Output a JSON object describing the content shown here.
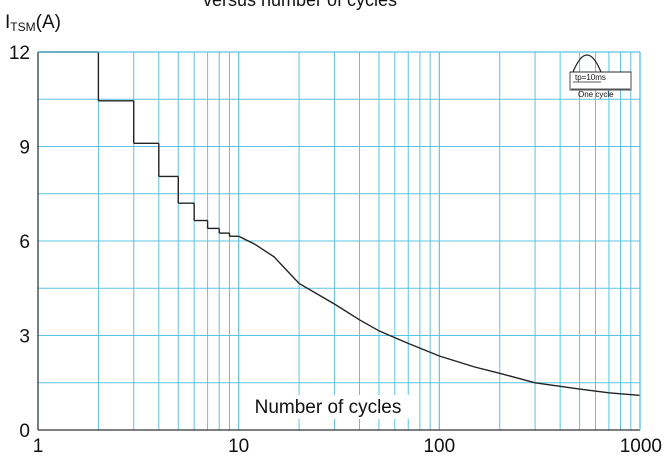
{
  "chart_data": {
    "type": "line",
    "title": "versus number of cycles",
    "ylabel_main": "I",
    "ylabel_sub": "TSM",
    "ylabel_unit": "(A)",
    "xlabel": "Number of cycles",
    "xscale": "log",
    "xlim": [
      1,
      1000
    ],
    "ylim": [
      0,
      12
    ],
    "x_ticks": [
      1,
      10,
      100,
      1000
    ],
    "x_tick_labels": [
      "1",
      "10",
      "100",
      "1000"
    ],
    "y_ticks": [
      0,
      3,
      6,
      9,
      12
    ],
    "y_tick_labels": [
      "0",
      "3",
      "6",
      "9",
      "12"
    ],
    "grid": true,
    "colors": {
      "grid": "#5bc4e3",
      "curve": "#222222",
      "text": "#111111",
      "background": "#ffffff"
    },
    "series": [
      {
        "steps": [
          {
            "x": [
              1,
              2
            ],
            "y": 12.0
          },
          {
            "x": [
              2,
              3
            ],
            "y": 10.45
          },
          {
            "x": [
              3,
              4
            ],
            "y": 9.1
          },
          {
            "x": [
              4,
              5
            ],
            "y": 8.05
          },
          {
            "x": [
              5,
              6
            ],
            "y": 7.2
          },
          {
            "x": [
              6,
              7
            ],
            "y": 6.65
          },
          {
            "x": [
              7,
              8
            ],
            "y": 6.4
          },
          {
            "x": [
              8,
              9
            ],
            "y": 6.25
          },
          {
            "x": [
              9,
              10
            ],
            "y": 6.15
          }
        ],
        "curve": [
          {
            "x": 10,
            "y": 6.15
          },
          {
            "x": 12,
            "y": 5.9
          },
          {
            "x": 15,
            "y": 5.5
          },
          {
            "x": 20,
            "y": 4.65
          },
          {
            "x": 30,
            "y": 4.0
          },
          {
            "x": 40,
            "y": 3.5
          },
          {
            "x": 50,
            "y": 3.15
          },
          {
            "x": 70,
            "y": 2.75
          },
          {
            "x": 100,
            "y": 2.35
          },
          {
            "x": 150,
            "y": 2.0
          },
          {
            "x": 200,
            "y": 1.8
          },
          {
            "x": 300,
            "y": 1.5
          },
          {
            "x": 500,
            "y": 1.3
          },
          {
            "x": 700,
            "y": 1.18
          },
          {
            "x": 1000,
            "y": 1.1
          }
        ]
      }
    ],
    "inset": {
      "label_tp": "tp=10ms",
      "label_cycle": "One cycle"
    }
  }
}
